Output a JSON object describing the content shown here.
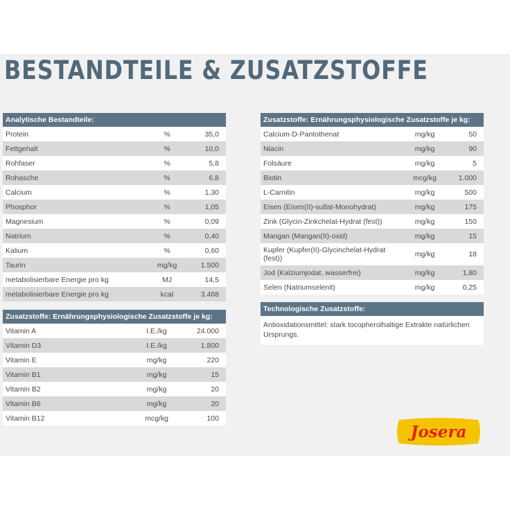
{
  "title": "BESTANDTEILE & ZUSATZSTOFFE",
  "analytic": {
    "header": "Analytische Bestandteile:",
    "rows": [
      {
        "name": "Protein",
        "unit": "%",
        "value": "35,0"
      },
      {
        "name": "Fettgehalt",
        "unit": "%",
        "value": "10,0"
      },
      {
        "name": "Rohfaser",
        "unit": "%",
        "value": "5,8"
      },
      {
        "name": "Rohasche",
        "unit": "%",
        "value": "6,8"
      },
      {
        "name": "Calcium",
        "unit": "%",
        "value": "1,30"
      },
      {
        "name": "Phosphor",
        "unit": "%",
        "value": "1,05"
      },
      {
        "name": "Magnesium",
        "unit": "%",
        "value": "0,09"
      },
      {
        "name": "Natrium",
        "unit": "%",
        "value": "0,40"
      },
      {
        "name": "Kalium",
        "unit": "%",
        "value": "0,60"
      },
      {
        "name": "Taurin",
        "unit": "mg/kg",
        "value": "1.500"
      },
      {
        "name": "metabolisierbare Energie pro kg",
        "unit": "MJ",
        "value": "14,5"
      },
      {
        "name": "metabolisierbare Energie pro kg",
        "unit": "kcal",
        "value": "3.468"
      }
    ]
  },
  "vitamins": {
    "header": "Zusatzstoffe: Ernährungsphysiologische Zusatzstoffe je kg:",
    "rows": [
      {
        "name": "Vitamin A",
        "unit": "I.E./kg",
        "value": "24.000"
      },
      {
        "name": "Vitamin D3",
        "unit": "I.E./kg",
        "value": "1.800"
      },
      {
        "name": "Vitamin E",
        "unit": "mg/kg",
        "value": "220"
      },
      {
        "name": "Vitamin B1",
        "unit": "mg/kg",
        "value": "15"
      },
      {
        "name": "Vitamin B2",
        "unit": "mg/kg",
        "value": "20"
      },
      {
        "name": "Vitamin B6",
        "unit": "mg/kg",
        "value": "20"
      },
      {
        "name": "Vitamin B12",
        "unit": "mcg/kg",
        "value": "100"
      }
    ]
  },
  "trace": {
    "header": "Zusatzstoffe: Ernährungsphysiologische Zusatzstoffe je kg:",
    "rows": [
      {
        "name": "Calcium-D-Pantothenat",
        "unit": "mg/kg",
        "value": "50"
      },
      {
        "name": "Niacin",
        "unit": "mg/kg",
        "value": "90"
      },
      {
        "name": "Folsäure",
        "unit": "mg/kg",
        "value": "5"
      },
      {
        "name": "Biotin",
        "unit": "mcg/kg",
        "value": "1.000"
      },
      {
        "name": "L-Carnitin",
        "unit": "mg/kg",
        "value": "500"
      },
      {
        "name": "Eisen (Eisen(II)-sulfat-Monohydrat)",
        "unit": "mg/kg",
        "value": "175"
      },
      {
        "name": "Zink (Glycin-Zinkchelat-Hydrat (fest))",
        "unit": "mg/kg",
        "value": "150"
      },
      {
        "name": "Mangan (Mangan(II)-oxid)",
        "unit": "mg/kg",
        "value": "15"
      },
      {
        "name": "Kupfer (Kupfer(II)-Glycinchelat-Hydrat (fest))",
        "unit": "mg/kg",
        "value": "18"
      },
      {
        "name": "Jod (Kalziumjodat, wasserfrei)",
        "unit": "mg/kg",
        "value": "1,80"
      },
      {
        "name": "Selen (Natriumselenit)",
        "unit": "mg/kg",
        "value": "0,25"
      }
    ]
  },
  "technological": {
    "header": "Technologische Zusatzstoffe:",
    "text": "Antioxidationsmittel: stark tocopherolhaltige Extrakte natürlichen Ursprungs."
  },
  "logo": {
    "text": "Josera",
    "bg_color": "#f4c400",
    "text_color": "#e2231a"
  }
}
